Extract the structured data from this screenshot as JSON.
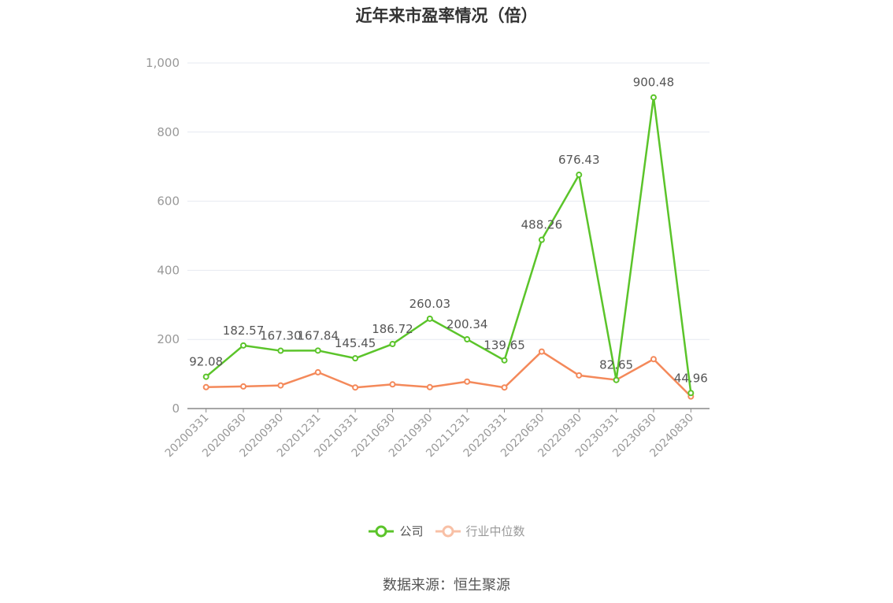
{
  "source": "数据来源：恒生聚源",
  "chart_data": {
    "type": "line",
    "title": "近年来市盈率情况（倍）",
    "categories": [
      "20200331",
      "20200630",
      "20200930",
      "20201231",
      "20210331",
      "20210630",
      "20210930",
      "20211231",
      "20220331",
      "20220630",
      "20220930",
      "20230331",
      "20230630",
      "20240830"
    ],
    "ylim": [
      0,
      1000
    ],
    "yticks": [
      0,
      200,
      400,
      600,
      800,
      1000
    ],
    "ytick_labels": [
      "0",
      "200",
      "400",
      "600",
      "800",
      "1,000"
    ],
    "grid": true,
    "legend_position": "bottom",
    "series": [
      {
        "name": "公司",
        "color": "#5bc42a",
        "values": [
          92.08,
          182.57,
          167.3,
          167.84,
          145.45,
          186.72,
          260.03,
          200.34,
          139.65,
          488.26,
          676.43,
          82.65,
          900.48,
          44.96
        ],
        "labels": [
          "92.08",
          "182.57",
          "167.30",
          "167.84",
          "145.45",
          "186.72",
          "260.03",
          "200.34",
          "139.65",
          "488.26",
          "676.43",
          "82.65",
          "900.48",
          "44.96"
        ]
      },
      {
        "name": "行业中位数",
        "color": "#f4895a",
        "values": [
          62,
          64,
          67,
          105,
          61,
          70,
          62,
          78,
          61,
          165,
          96,
          83,
          143,
          35
        ]
      }
    ]
  }
}
